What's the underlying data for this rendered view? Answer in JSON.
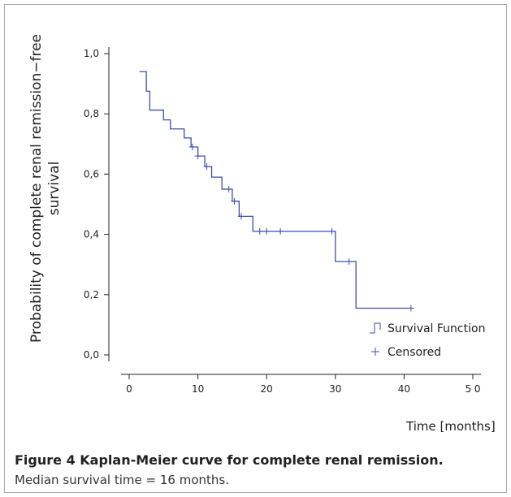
{
  "chart_data": {
    "type": "step",
    "ylabel": [
      "Probability of complete renal remission−free",
      "survival"
    ],
    "xlabel": "Time [months]",
    "xlim": [
      0,
      50
    ],
    "xticks": [
      0,
      10,
      20,
      30,
      40,
      {
        "value": 50,
        "label": "5 0"
      }
    ],
    "ylim": [
      0,
      1
    ],
    "yticks": [
      {
        "value": 0,
        "label": "0,0"
      },
      {
        "value": 0.2,
        "label": "0,2"
      },
      {
        "value": 0.4,
        "label": "0,4"
      },
      {
        "value": 0.6,
        "label": "0,6"
      },
      {
        "value": 0.8,
        "label": "0,8"
      },
      {
        "value": 1,
        "label": "1,0"
      }
    ],
    "series": [
      {
        "name": "Survival Function",
        "color": "#3b4fae",
        "x": [
          1.5,
          2.5,
          3,
          5,
          6,
          8,
          9,
          10,
          11,
          12,
          13.5,
          15,
          16,
          18,
          30,
          33,
          41
        ],
        "values": [
          0.94,
          0.875,
          0.8125,
          0.78,
          0.75,
          0.72,
          0.69,
          0.66,
          0.625,
          0.59,
          0.55,
          0.51,
          0.46,
          0.41,
          0.31,
          0.155,
          0.155
        ]
      },
      {
        "name": "Censored",
        "color": "#3b4fae",
        "x": [
          9.2,
          10,
          11.3,
          14.5,
          15.3,
          16.3,
          19,
          20,
          22,
          29.5,
          32,
          41
        ],
        "values": [
          0.69,
          0.66,
          0.625,
          0.55,
          0.51,
          0.46,
          0.41,
          0.41,
          0.41,
          0.41,
          0.31,
          0.155
        ]
      }
    ]
  },
  "caption": {
    "label": "Figure 4",
    "title": "Kaplan-Meier curve for complete renal remission.",
    "text": "Median survival time = 16 months."
  }
}
